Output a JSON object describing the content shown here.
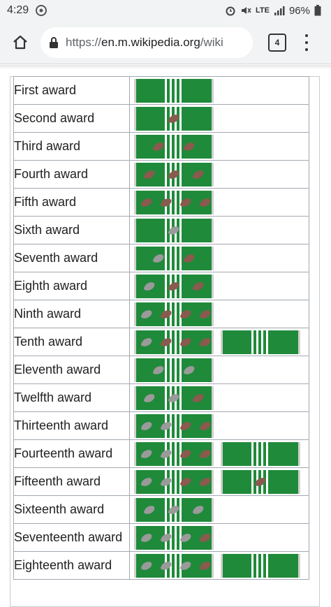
{
  "status_bar": {
    "time": "4:29",
    "network": "LTE",
    "battery": "96%"
  },
  "toolbar": {
    "url_scheme": "https://",
    "url_host": "en.m.wikipedia.org",
    "url_path": "/wiki",
    "tab_count": "4"
  },
  "colors": {
    "ribbon_green": "#1f8a3a",
    "ribbon_stripe": "#ffffff",
    "bronze_leaf": "#8a5a4e",
    "silver_leaf": "#9a9a9a",
    "fringe": "#d0d0d0"
  },
  "awards": [
    {
      "label": "First award",
      "ribbons": [
        {
          "leaves": []
        }
      ]
    },
    {
      "label": "Second award",
      "ribbons": [
        {
          "leaves": [
            "bronze"
          ]
        }
      ]
    },
    {
      "label": "Third award",
      "ribbons": [
        {
          "leaves": [
            "bronze",
            "bronze"
          ]
        }
      ]
    },
    {
      "label": "Fourth award",
      "ribbons": [
        {
          "leaves": [
            "bronze",
            "bronze",
            "bronze"
          ]
        }
      ]
    },
    {
      "label": "Fifth award",
      "ribbons": [
        {
          "leaves": [
            "bronze",
            "bronze",
            "bronze",
            "bronze"
          ]
        }
      ]
    },
    {
      "label": "Sixth award",
      "ribbons": [
        {
          "leaves": [
            "silver"
          ]
        }
      ]
    },
    {
      "label": "Seventh award",
      "ribbons": [
        {
          "leaves": [
            "silver",
            "bronze"
          ]
        }
      ]
    },
    {
      "label": "Eighth award",
      "ribbons": [
        {
          "leaves": [
            "silver",
            "bronze",
            "bronze"
          ]
        }
      ]
    },
    {
      "label": "Ninth award",
      "ribbons": [
        {
          "leaves": [
            "silver",
            "bronze",
            "bronze",
            "bronze"
          ]
        }
      ]
    },
    {
      "label": "Tenth award",
      "ribbons": [
        {
          "leaves": [
            "silver",
            "bronze",
            "bronze",
            "bronze"
          ]
        },
        {
          "leaves": []
        }
      ]
    },
    {
      "label": "Eleventh award",
      "ribbons": [
        {
          "leaves": [
            "silver",
            "silver"
          ]
        }
      ]
    },
    {
      "label": "Twelfth award",
      "ribbons": [
        {
          "leaves": [
            "silver",
            "silver",
            "bronze"
          ]
        }
      ]
    },
    {
      "label": "Thirteenth award",
      "ribbons": [
        {
          "leaves": [
            "silver",
            "silver",
            "bronze",
            "bronze"
          ]
        }
      ]
    },
    {
      "label": "Fourteenth award",
      "ribbons": [
        {
          "leaves": [
            "silver",
            "silver",
            "bronze",
            "bronze"
          ]
        },
        {
          "leaves": []
        }
      ]
    },
    {
      "label": "Fifteenth award",
      "ribbons": [
        {
          "leaves": [
            "silver",
            "silver",
            "bronze",
            "bronze"
          ]
        },
        {
          "leaves": [
            "bronze"
          ]
        }
      ]
    },
    {
      "label": "Sixteenth award",
      "ribbons": [
        {
          "leaves": [
            "silver",
            "silver",
            "silver"
          ]
        }
      ]
    },
    {
      "label": "Seventeenth award",
      "ribbons": [
        {
          "leaves": [
            "silver",
            "silver",
            "silver",
            "bronze"
          ]
        }
      ]
    },
    {
      "label": "Eighteenth award",
      "ribbons": [
        {
          "leaves": [
            "silver",
            "silver",
            "silver",
            "bronze"
          ]
        },
        {
          "leaves": []
        }
      ]
    }
  ]
}
